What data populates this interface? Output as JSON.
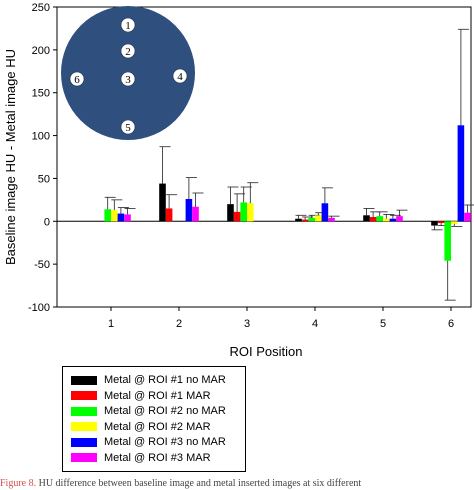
{
  "chart_data": {
    "type": "bar",
    "title": "",
    "xlabel": "ROI Position",
    "ylabel": "Baseline image HU - Metal image HU",
    "ylim": [
      -100,
      250
    ],
    "yticks": [
      -100,
      -50,
      0,
      50,
      100,
      150,
      200,
      250
    ],
    "categories": [
      "1",
      "2",
      "3",
      "4",
      "5",
      "6"
    ],
    "grid": false,
    "error_bars": "positive-direction caps",
    "legend_position": "below-chart",
    "series": [
      {
        "name": "Metal @ ROI #1 no MAR",
        "color": "#000000",
        "values": [
          0,
          44,
          20,
          3,
          7,
          -5
        ],
        "errors": [
          0,
          43,
          20,
          4,
          8,
          5
        ]
      },
      {
        "name": "Metal @ ROI #1 MAR",
        "color": "#ff0000",
        "values": [
          0,
          15,
          11,
          2,
          5,
          -2
        ],
        "errors": [
          0,
          16,
          21,
          3,
          6,
          3
        ]
      },
      {
        "name": "Metal @ ROI #2 no MAR",
        "color": "#00ff00",
        "values": [
          14,
          0,
          22,
          4,
          6,
          -46
        ],
        "errors": [
          14,
          0,
          18,
          3,
          5,
          46
        ]
      },
      {
        "name": "Metal @ ROI #2 MAR",
        "color": "#ffff00",
        "values": [
          13,
          0,
          21,
          7,
          3,
          -3
        ],
        "errors": [
          12,
          0,
          24,
          3,
          5,
          3
        ]
      },
      {
        "name": "Metal @ ROI #3 no MAR",
        "color": "#0000ff",
        "values": [
          9,
          26,
          0,
          21,
          3,
          112
        ],
        "errors": [
          7,
          25,
          0,
          18,
          4,
          112
        ]
      },
      {
        "name": "Metal @ ROI #3 MAR",
        "color": "#ff00ff",
        "values": [
          8,
          17,
          0,
          4,
          6,
          10
        ],
        "errors": [
          7,
          16,
          0,
          2,
          7,
          9
        ]
      }
    ],
    "inset": {
      "type": "phantom-diagram",
      "fill": "#2f4f7f",
      "positions": [
        {
          "label": "1"
        },
        {
          "label": "2"
        },
        {
          "label": "3"
        },
        {
          "label": "4"
        },
        {
          "label": "5"
        },
        {
          "label": "6"
        }
      ]
    }
  },
  "caption": {
    "lead": "Figure 8.",
    "text": " HU difference between baseline image and metal inserted images at six different"
  }
}
